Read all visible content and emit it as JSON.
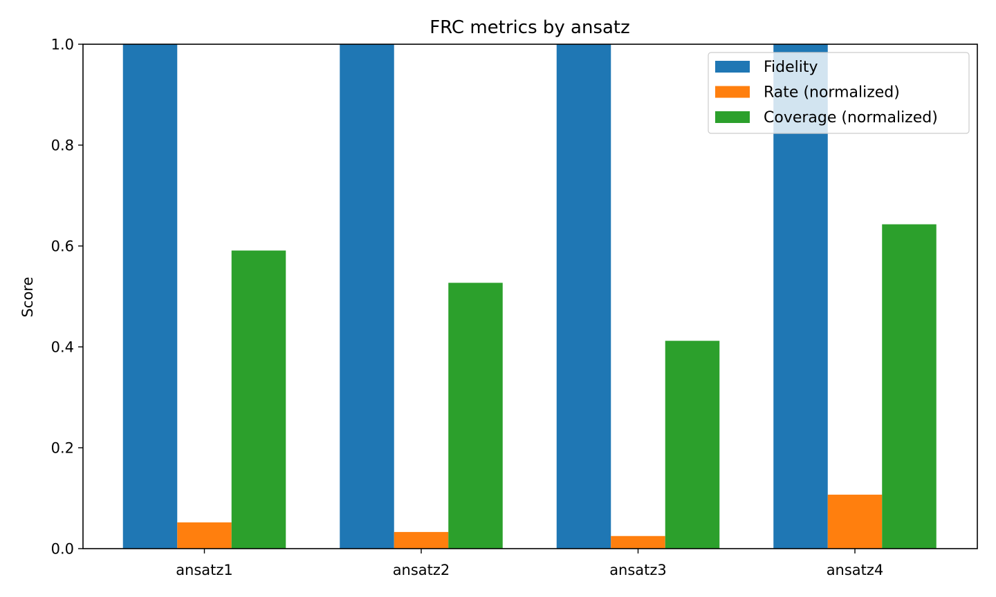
{
  "chart_data": {
    "type": "bar",
    "title": "FRC metrics by ansatz",
    "xlabel": "",
    "ylabel": "Score",
    "categories": [
      "ansatz1",
      "ansatz2",
      "ansatz3",
      "ansatz4"
    ],
    "series": [
      {
        "name": "Fidelity",
        "color": "#1f77b4",
        "values": [
          1.0,
          1.0,
          1.0,
          1.0
        ]
      },
      {
        "name": "Rate (normalized)",
        "color": "#ff7f0e",
        "values": [
          0.052,
          0.033,
          0.025,
          0.107
        ]
      },
      {
        "name": "Coverage (normalized)",
        "color": "#2ca02c",
        "values": [
          0.591,
          0.527,
          0.412,
          0.643
        ]
      }
    ],
    "ylim": [
      0,
      1.0
    ],
    "yticks": [
      "0.0",
      "0.2",
      "0.4",
      "0.6",
      "0.8",
      "1.0"
    ],
    "grid": false,
    "legend_position": "top-right"
  }
}
